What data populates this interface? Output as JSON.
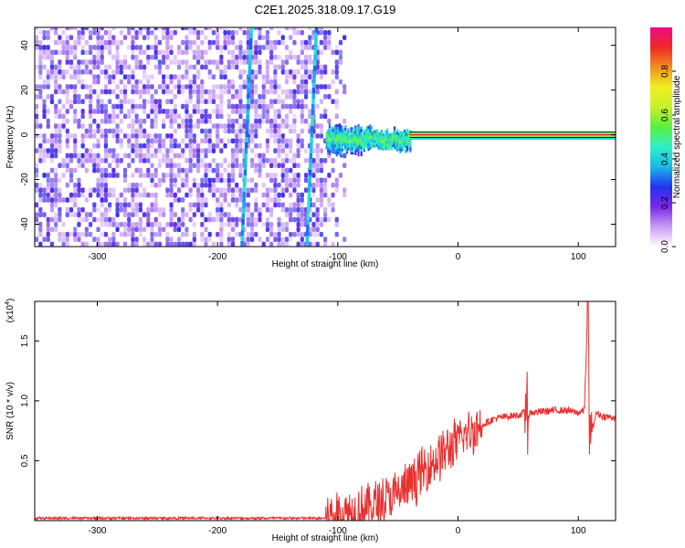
{
  "chart_data": [
    {
      "type": "heatmap",
      "title": "C2E1.2025.318.09.17.G19",
      "xlabel": "Height of straight line (km)",
      "ylabel": "Frequency (Hz)",
      "xlim": [
        -352,
        131
      ],
      "ylim": [
        -50,
        48
      ],
      "x_ticks": [
        -300,
        -200,
        -100,
        0,
        100
      ],
      "y_ticks": [
        -40,
        -20,
        0,
        20,
        40
      ],
      "colorbar": {
        "label": "Normalized spectral amplitude",
        "range": [
          0,
          1
        ],
        "ticks": [
          0.0,
          0.2,
          0.4,
          0.6,
          0.8
        ],
        "colors": [
          "#ffffff",
          "#c89cf5",
          "#7a28e6",
          "#2233ee",
          "#1ab8e8",
          "#2ef0c8",
          "#58f040",
          "#c8f028",
          "#f0f020",
          "#f09020",
          "#f02828",
          "#f00a8a"
        ]
      },
      "features": {
        "noise_region_x": [
          -352,
          -100
        ],
        "signal_line_start_x": -110,
        "signal_line_freq": 0,
        "streaks": [
          {
            "x_top": -172,
            "y_top": 48,
            "x_bottom": -180,
            "y_bottom": -50
          },
          {
            "x_top": -118,
            "y_top": 48,
            "x_bottom": -126,
            "y_bottom": -50
          }
        ]
      }
    },
    {
      "type": "line",
      "xlabel": "Height of straight line (km)",
      "ylabel": "SNR (10 * v/v)",
      "y_scale_label": "(x10",
      "y_scale_exp": "4",
      "xlim": [
        -352,
        131
      ],
      "ylim": [
        0,
        1.83
      ],
      "x_ticks": [
        -300,
        -200,
        -100,
        0,
        100
      ],
      "y_ticks": [
        0.5,
        1.0,
        1.5
      ],
      "series": [
        {
          "color": "#e83030",
          "x": [
            -352,
            -300,
            -250,
            -200,
            -150,
            -120,
            -100,
            -90,
            -80,
            -70,
            -60,
            -50,
            -40,
            -30,
            -20,
            -10,
            0,
            10,
            20,
            30,
            40,
            50,
            55,
            57,
            60,
            70,
            80,
            90,
            100,
            105,
            108,
            110,
            115,
            120,
            131
          ],
          "y": [
            0.02,
            0.02,
            0.02,
            0.02,
            0.02,
            0.03,
            0.05,
            0.07,
            0.1,
            0.13,
            0.17,
            0.22,
            0.3,
            0.4,
            0.5,
            0.58,
            0.66,
            0.74,
            0.8,
            0.85,
            0.87,
            0.88,
            0.9,
            0.85,
            0.9,
            0.91,
            0.92,
            0.92,
            0.9,
            0.92,
            1.83,
            0.7,
            0.9,
            0.87,
            0.86
          ]
        }
      ]
    }
  ]
}
